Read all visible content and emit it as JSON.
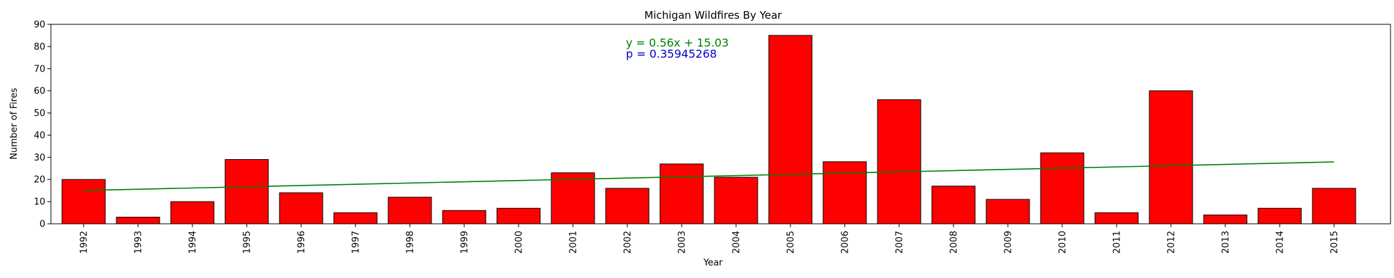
{
  "chart_data": {
    "type": "bar",
    "title": "Michigan Wildfires By Year",
    "xlabel": "Year",
    "ylabel": "Number of Fires",
    "categories": [
      "1992",
      "1993",
      "1994",
      "1995",
      "1996",
      "1997",
      "1998",
      "1999",
      "2000",
      "2001",
      "2002",
      "2003",
      "2004",
      "2005",
      "2006",
      "2007",
      "2008",
      "2009",
      "2010",
      "2011",
      "2012",
      "2013",
      "2014",
      "2015"
    ],
    "values": [
      20,
      3,
      10,
      29,
      14,
      5,
      12,
      6,
      7,
      23,
      16,
      27,
      21,
      85,
      28,
      56,
      17,
      11,
      32,
      5,
      60,
      4,
      7,
      16
    ],
    "ylim": [
      0,
      90
    ],
    "yticks": [
      0,
      10,
      20,
      30,
      40,
      50,
      60,
      70,
      80,
      90
    ],
    "grid": false,
    "bar_color": "#ff0000",
    "bar_edge_color": "#000000",
    "trendline": {
      "slope": 0.56,
      "intercept": 15.03,
      "color": "#008000"
    },
    "annotations": {
      "equation": "y = 0.56x + 15.03",
      "equation_color": "#008000",
      "p_value": "p = 0.35945268",
      "p_value_color": "#0000cc"
    }
  }
}
